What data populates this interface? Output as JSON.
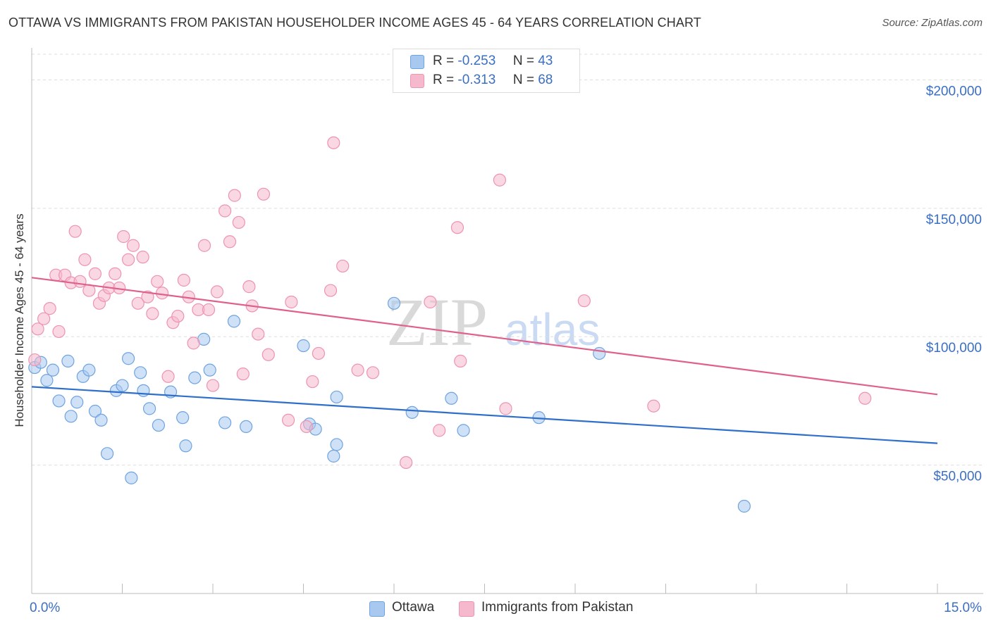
{
  "header": {
    "title": "OTTAWA VS IMMIGRANTS FROM PAKISTAN HOUSEHOLDER INCOME AGES 45 - 64 YEARS CORRELATION CHART",
    "source": "Source: ZipAtlas.com"
  },
  "watermark": {
    "zip": "ZIP",
    "atlas": "atlas"
  },
  "legend": {
    "rows": [
      {
        "r_label": "R =",
        "r_value": "-0.253",
        "n_label": "N =",
        "n_value": "43",
        "color": "#a8c8f0"
      },
      {
        "r_label": "R =",
        "r_value": "-0.313",
        "n_label": "N =",
        "n_value": "68",
        "color": "#f5b8cc"
      }
    ]
  },
  "chart_data": {
    "type": "scatter",
    "title": "OTTAWA VS IMMIGRANTS FROM PAKISTAN HOUSEHOLDER INCOME AGES 45 - 64 YEARS CORRELATION CHART",
    "xlabel": "",
    "ylabel": "Householder Income Ages 45 - 64 years",
    "xlim": [
      0,
      15
    ],
    "ylim": [
      0,
      210000
    ],
    "x_tick_labels": [
      "0.0%",
      "15.0%"
    ],
    "y_ticks": [
      50000,
      100000,
      150000,
      200000
    ],
    "y_tick_labels": [
      "$50,000",
      "$100,000",
      "$150,000",
      "$200,000"
    ],
    "grid": "horizontal dashed",
    "legend_position": "top-center",
    "series": [
      {
        "name": "Ottawa",
        "color": "#6fa3e0",
        "fill": "#a8c8f0",
        "trend": {
          "x": [
            0,
            15
          ],
          "y": [
            80500,
            58500
          ],
          "color": "#2f6fca"
        },
        "points": [
          {
            "x": 0.05,
            "y": 88000
          },
          {
            "x": 0.15,
            "y": 90000
          },
          {
            "x": 0.25,
            "y": 83000
          },
          {
            "x": 0.35,
            "y": 87000
          },
          {
            "x": 0.45,
            "y": 75000
          },
          {
            "x": 0.6,
            "y": 90500
          },
          {
            "x": 0.65,
            "y": 69000
          },
          {
            "x": 0.75,
            "y": 74500
          },
          {
            "x": 0.85,
            "y": 84500
          },
          {
            "x": 0.95,
            "y": 87000
          },
          {
            "x": 1.05,
            "y": 71000
          },
          {
            "x": 1.15,
            "y": 67500
          },
          {
            "x": 1.25,
            "y": 54500
          },
          {
            "x": 1.4,
            "y": 79000
          },
          {
            "x": 1.5,
            "y": 81000
          },
          {
            "x": 1.6,
            "y": 91500
          },
          {
            "x": 1.65,
            "y": 45000
          },
          {
            "x": 1.8,
            "y": 86000
          },
          {
            "x": 1.85,
            "y": 79000
          },
          {
            "x": 1.95,
            "y": 72000
          },
          {
            "x": 2.1,
            "y": 65500
          },
          {
            "x": 2.3,
            "y": 78500
          },
          {
            "x": 2.5,
            "y": 68500
          },
          {
            "x": 2.55,
            "y": 57500
          },
          {
            "x": 2.7,
            "y": 84000
          },
          {
            "x": 2.85,
            "y": 99000
          },
          {
            "x": 2.95,
            "y": 87000
          },
          {
            "x": 3.2,
            "y": 66500
          },
          {
            "x": 3.35,
            "y": 106000
          },
          {
            "x": 3.55,
            "y": 65000
          },
          {
            "x": 4.5,
            "y": 96500
          },
          {
            "x": 4.6,
            "y": 66000
          },
          {
            "x": 4.7,
            "y": 64000
          },
          {
            "x": 5.0,
            "y": 53500
          },
          {
            "x": 5.05,
            "y": 58000
          },
          {
            "x": 5.05,
            "y": 76500
          },
          {
            "x": 6.0,
            "y": 113000
          },
          {
            "x": 6.3,
            "y": 70500
          },
          {
            "x": 6.95,
            "y": 76000
          },
          {
            "x": 7.15,
            "y": 63500
          },
          {
            "x": 8.4,
            "y": 68500
          },
          {
            "x": 9.4,
            "y": 93500
          },
          {
            "x": 11.8,
            "y": 34000
          }
        ]
      },
      {
        "name": "Immigrants from Pakistan",
        "color": "#ee93b0",
        "fill": "#f5b8cc",
        "trend": {
          "x": [
            0,
            15
          ],
          "y": [
            123000,
            77500
          ],
          "color": "#e0608c"
        },
        "points": [
          {
            "x": 0.05,
            "y": 91000
          },
          {
            "x": 0.1,
            "y": 103000
          },
          {
            "x": 0.2,
            "y": 107000
          },
          {
            "x": 0.3,
            "y": 111000
          },
          {
            "x": 0.4,
            "y": 124000
          },
          {
            "x": 0.45,
            "y": 102000
          },
          {
            "x": 0.55,
            "y": 124000
          },
          {
            "x": 0.65,
            "y": 121000
          },
          {
            "x": 0.72,
            "y": 141000
          },
          {
            "x": 0.8,
            "y": 121500
          },
          {
            "x": 0.88,
            "y": 130000
          },
          {
            "x": 0.95,
            "y": 118000
          },
          {
            "x": 1.05,
            "y": 124500
          },
          {
            "x": 1.12,
            "y": 113000
          },
          {
            "x": 1.2,
            "y": 116000
          },
          {
            "x": 1.28,
            "y": 119000
          },
          {
            "x": 1.38,
            "y": 124500
          },
          {
            "x": 1.45,
            "y": 119000
          },
          {
            "x": 1.52,
            "y": 139000
          },
          {
            "x": 1.6,
            "y": 130000
          },
          {
            "x": 1.68,
            "y": 135500
          },
          {
            "x": 1.76,
            "y": 113000
          },
          {
            "x": 1.84,
            "y": 131000
          },
          {
            "x": 1.92,
            "y": 115500
          },
          {
            "x": 2.0,
            "y": 109000
          },
          {
            "x": 2.08,
            "y": 121500
          },
          {
            "x": 2.16,
            "y": 117000
          },
          {
            "x": 2.26,
            "y": 84500
          },
          {
            "x": 2.34,
            "y": 105500
          },
          {
            "x": 2.42,
            "y": 108000
          },
          {
            "x": 2.52,
            "y": 122000
          },
          {
            "x": 2.6,
            "y": 115500
          },
          {
            "x": 2.68,
            "y": 97500
          },
          {
            "x": 2.76,
            "y": 110500
          },
          {
            "x": 2.86,
            "y": 135500
          },
          {
            "x": 2.93,
            "y": 110500
          },
          {
            "x": 3.0,
            "y": 81000
          },
          {
            "x": 3.07,
            "y": 117500
          },
          {
            "x": 3.2,
            "y": 149000
          },
          {
            "x": 3.28,
            "y": 137000
          },
          {
            "x": 3.36,
            "y": 155000
          },
          {
            "x": 3.43,
            "y": 144500
          },
          {
            "x": 3.5,
            "y": 85500
          },
          {
            "x": 3.6,
            "y": 119500
          },
          {
            "x": 3.65,
            "y": 112000
          },
          {
            "x": 3.75,
            "y": 101000
          },
          {
            "x": 3.84,
            "y": 155500
          },
          {
            "x": 3.92,
            "y": 93000
          },
          {
            "x": 4.25,
            "y": 67500
          },
          {
            "x": 4.3,
            "y": 113500
          },
          {
            "x": 4.55,
            "y": 65000
          },
          {
            "x": 4.65,
            "y": 82500
          },
          {
            "x": 4.75,
            "y": 93500
          },
          {
            "x": 4.95,
            "y": 118000
          },
          {
            "x": 5.0,
            "y": 175500
          },
          {
            "x": 5.15,
            "y": 127500
          },
          {
            "x": 5.4,
            "y": 87000
          },
          {
            "x": 5.65,
            "y": 86000
          },
          {
            "x": 6.2,
            "y": 51000
          },
          {
            "x": 6.6,
            "y": 113500
          },
          {
            "x": 6.75,
            "y": 63500
          },
          {
            "x": 7.05,
            "y": 142500
          },
          {
            "x": 7.1,
            "y": 90500
          },
          {
            "x": 7.75,
            "y": 161000
          },
          {
            "x": 7.85,
            "y": 72000
          },
          {
            "x": 9.15,
            "y": 114000
          },
          {
            "x": 10.3,
            "y": 73000
          },
          {
            "x": 13.8,
            "y": 76000
          }
        ]
      }
    ]
  }
}
